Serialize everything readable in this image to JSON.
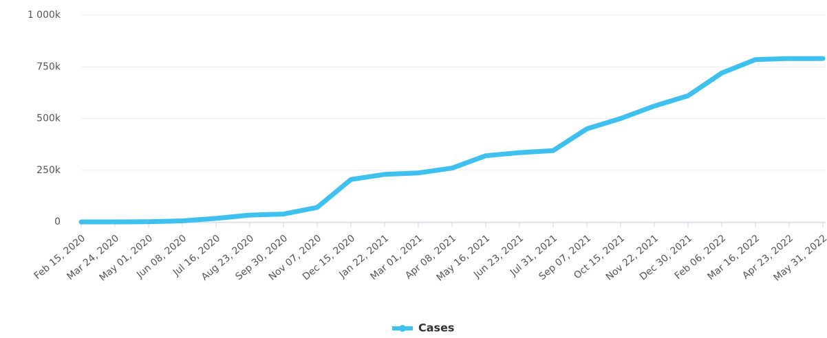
{
  "chart_data": {
    "type": "line",
    "categories": [
      "Feb 15, 2020",
      "Mar 24, 2020",
      "May 01, 2020",
      "Jun 08, 2020",
      "Jul 16, 2020",
      "Aug 23, 2020",
      "Sep 30, 2020",
      "Nov 07, 2020",
      "Dec 15, 2020",
      "Jan 22, 2021",
      "Mar 01, 2021",
      "Apr 08, 2021",
      "May 16, 2021",
      "Jun 23, 2021",
      "Jul 31, 2021",
      "Sep 07, 2021",
      "Oct 15, 2021",
      "Nov 22, 2021",
      "Dec 30, 2021",
      "Feb 06, 2022",
      "Mar 16, 2022",
      "Apr 23, 2022",
      "May 31, 2022"
    ],
    "series": [
      {
        "name": "Cases",
        "color": "#3fc1f0",
        "values": [
          0,
          0,
          1000,
          5000,
          17000,
          33000,
          38000,
          70000,
          205000,
          230000,
          237000,
          260000,
          320000,
          335000,
          345000,
          450000,
          500000,
          560000,
          610000,
          720000,
          785000,
          790000,
          790000
        ]
      }
    ],
    "ylim": [
      0,
      1000000
    ],
    "yticks": [
      0,
      {
        "value": 250000,
        "label": "250k"
      },
      {
        "value": 500000,
        "label": "500k"
      },
      {
        "value": 750000,
        "label": "750k"
      },
      {
        "value": 1000000,
        "label": "1 000k"
      }
    ],
    "grid": true,
    "legend": "bottom"
  }
}
